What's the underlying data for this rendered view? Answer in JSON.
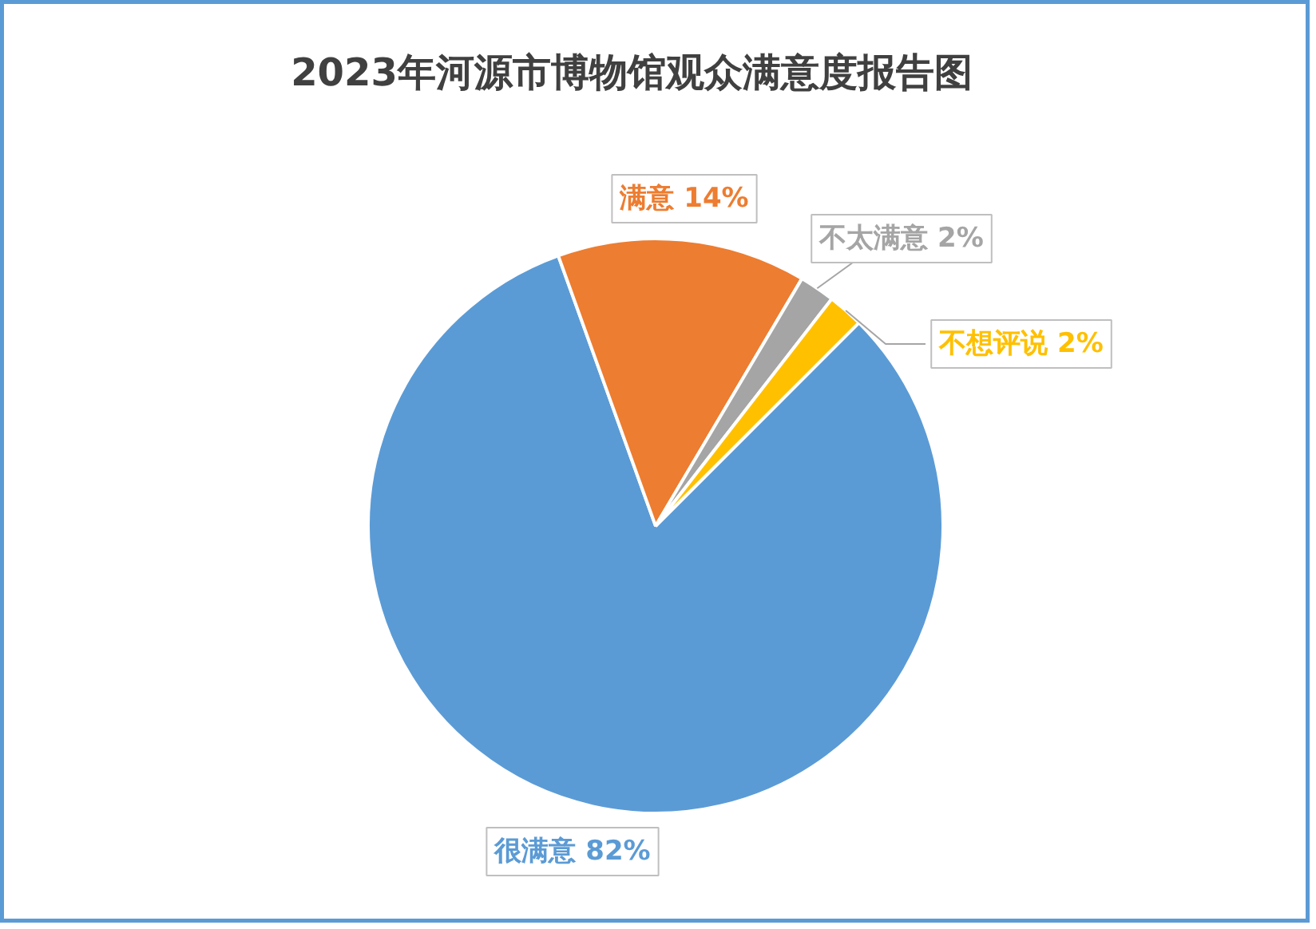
{
  "chart_data": {
    "type": "pie",
    "title": "2023年河源市博物馆观众满意度报告图",
    "categories": [
      "很满意",
      "满意",
      "不太满意",
      "不想评说"
    ],
    "values": [
      82,
      14,
      2,
      2
    ],
    "colors": [
      "#5b9bd5",
      "#ed7d31",
      "#a5a5a5",
      "#ffc000"
    ],
    "value_labels": [
      "82%",
      "14%",
      "2%",
      "2%"
    ]
  }
}
